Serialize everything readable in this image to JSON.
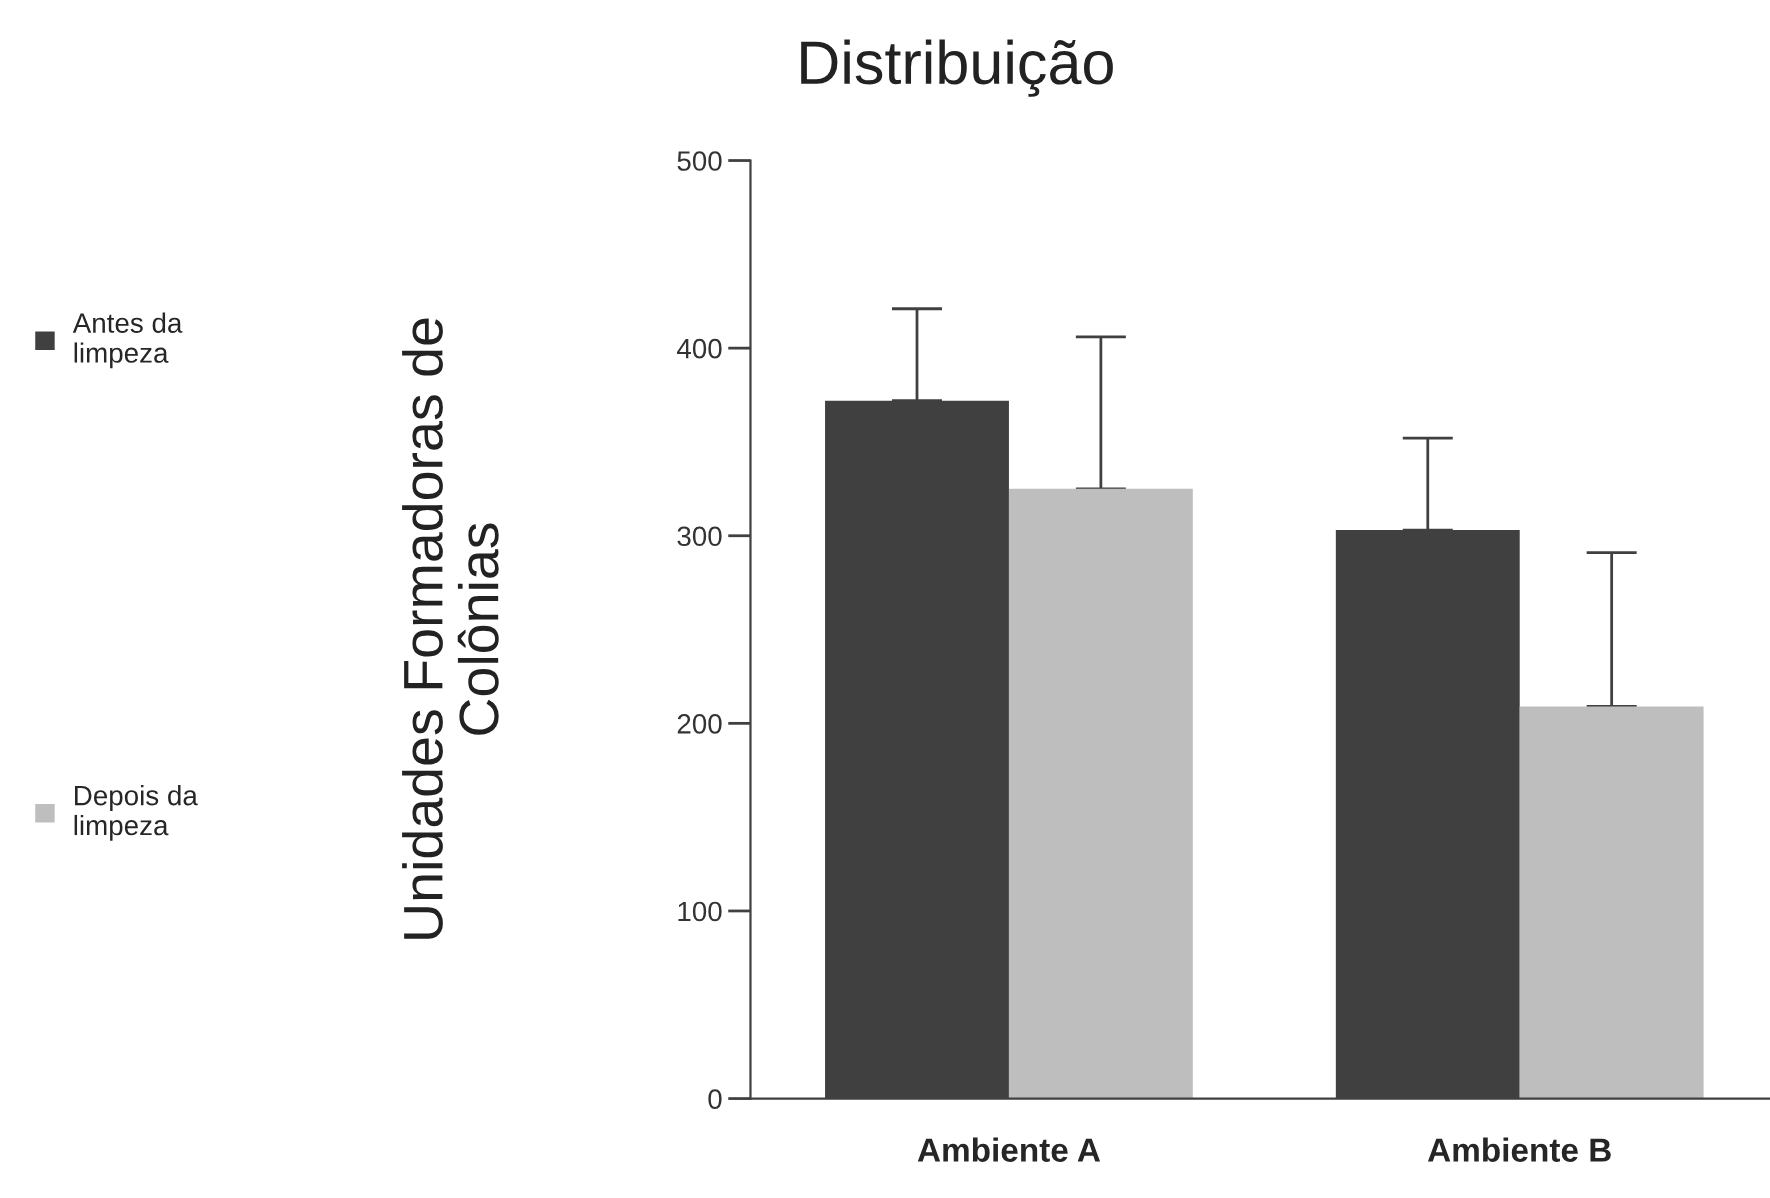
{
  "chart_data": {
    "type": "bar",
    "title": "Distribuição",
    "ylabel": "Unidades Formadoras de\nColônias",
    "categories": [
      "Ambiente A",
      "Ambiente B"
    ],
    "series": [
      {
        "name": "Antes da\nlimpeza",
        "color": "#404040",
        "values": [
          372,
          303
        ],
        "errors": [
          [
            372,
            421
          ],
          [
            303,
            352
          ]
        ]
      },
      {
        "name": "Depois da\nlimpeza",
        "color": "#bebebe",
        "values": [
          325,
          209
        ],
        "errors": [
          [
            325,
            406
          ],
          [
            209,
            291
          ]
        ]
      }
    ],
    "ylim": [
      0,
      500
    ],
    "yticks": [
      0,
      100,
      200,
      300,
      400,
      500
    ],
    "grid": false,
    "legend": "left"
  }
}
